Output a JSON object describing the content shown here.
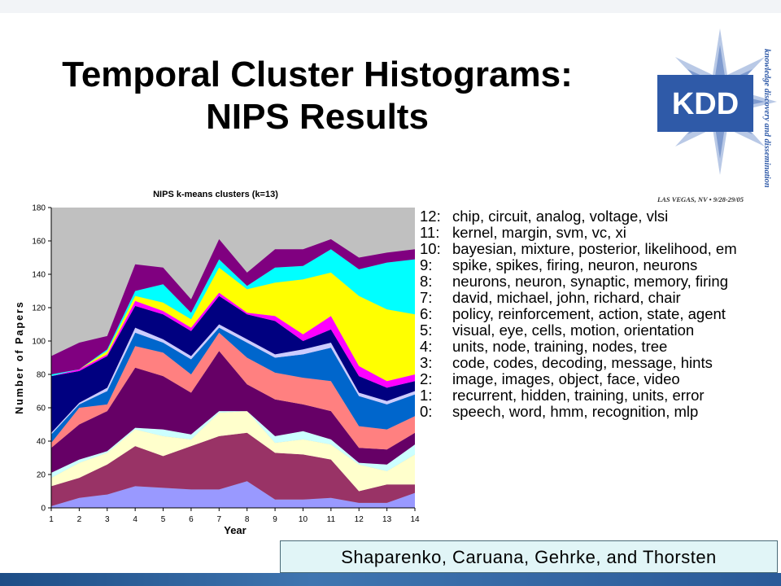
{
  "slide": {
    "title_line1": "Temporal Cluster Histograms:",
    "title_line2": "NIPS Results",
    "credit": "Shaparenko, Caruana, Gehrke, and Thorsten"
  },
  "logo": {
    "text": "KDD",
    "tagline": "knowledge discovery and dissemination",
    "location": "LAS VEGAS, NV • 9/28-29/05"
  },
  "legend": [
    {
      "key": "12:",
      "text": "chip, circuit, analog, voltage, vlsi"
    },
    {
      "key": "11:",
      "text": "kernel, margin, svm, vc, xi"
    },
    {
      "key": "10:",
      "text": "bayesian, mixture, posterior, likelihood, em"
    },
    {
      "key": "9:",
      "text": "spike, spikes, firing, neuron, neurons"
    },
    {
      "key": "8:",
      "text": "neurons, neuron, synaptic, memory, firing"
    },
    {
      "key": "7:",
      "text": "david, michael, john, richard, chair"
    },
    {
      "key": "6:",
      "text": "policy, reinforcement, action, state, agent"
    },
    {
      "key": "5:",
      "text": "visual, eye, cells, motion, orientation"
    },
    {
      "key": "4:",
      "text": "units, node, training, nodes, tree"
    },
    {
      "key": "3:",
      "text": "code, codes, decoding, message, hints"
    },
    {
      "key": "2:",
      "text": "image, images, object, face, video"
    },
    {
      "key": "1:",
      "text": "recurrent, hidden, training, units, error"
    },
    {
      "key": "0:",
      "text": "speech, word, hmm, recognition, mlp"
    }
  ],
  "chart_data": {
    "type": "area",
    "title": "NIPS k-means clusters (k=13)",
    "xlabel": "Year",
    "ylabel": "Number of Papers",
    "categories": [
      "1",
      "2",
      "3",
      "4",
      "5",
      "6",
      "7",
      "8",
      "9",
      "10",
      "11",
      "12",
      "13",
      "14"
    ],
    "ylim": [
      0,
      180
    ],
    "yticks": [
      0,
      20,
      40,
      60,
      80,
      100,
      120,
      140,
      160,
      180
    ],
    "stacked": true,
    "grid": false,
    "plot_background": "#c0c0c0",
    "series": [
      {
        "name": "0",
        "color": "#9999ff",
        "values": [
          1,
          6,
          8,
          13,
          12,
          11,
          11,
          16,
          5,
          5,
          6,
          3,
          3,
          9
        ]
      },
      {
        "name": "1",
        "color": "#993366",
        "values": [
          12,
          12,
          18,
          24,
          19,
          26,
          32,
          29,
          28,
          27,
          23,
          7,
          11,
          5
        ]
      },
      {
        "name": "2",
        "color": "#ffffcc",
        "values": [
          5,
          9,
          7,
          10,
          12,
          4,
          14,
          13,
          6,
          9,
          9,
          16,
          8,
          18
        ]
      },
      {
        "name": "3",
        "color": "#ccffff",
        "values": [
          3,
          2,
          1,
          1,
          4,
          3,
          1,
          0,
          4,
          5,
          3,
          1,
          4,
          6
        ]
      },
      {
        "name": "4",
        "color": "#660066",
        "values": [
          15,
          21,
          24,
          36,
          32,
          25,
          36,
          16,
          22,
          16,
          17,
          9,
          9,
          7
        ]
      },
      {
        "name": "5",
        "color": "#ff8080",
        "values": [
          3,
          10,
          4,
          13,
          14,
          11,
          11,
          16,
          16,
          16,
          18,
          13,
          12,
          10
        ]
      },
      {
        "name": "6",
        "color": "#0066cc",
        "values": [
          5,
          2,
          8,
          8,
          6,
          9,
          3,
          9,
          9,
          14,
          20,
          18,
          15,
          13
        ]
      },
      {
        "name": "7",
        "color": "#ccccff",
        "values": [
          1,
          1,
          2,
          3,
          2,
          2,
          2,
          2,
          2,
          3,
          3,
          2,
          2,
          2
        ]
      },
      {
        "name": "8",
        "color": "#000080",
        "values": [
          34,
          19,
          19,
          13,
          15,
          15,
          17,
          15,
          20,
          5,
          8,
          10,
          8,
          6
        ]
      },
      {
        "name": "9",
        "color": "#ff00ff",
        "values": [
          0,
          1,
          1,
          3,
          2,
          2,
          2,
          1,
          3,
          4,
          8,
          6,
          4,
          4
        ]
      },
      {
        "name": "10",
        "color": "#ffff00",
        "values": [
          0,
          0,
          2,
          3,
          5,
          5,
          15,
          14,
          20,
          33,
          26,
          42,
          43,
          36
        ]
      },
      {
        "name": "11",
        "color": "#00ffff",
        "values": [
          1,
          0,
          1,
          3,
          11,
          4,
          5,
          2,
          9,
          8,
          14,
          16,
          28,
          33
        ]
      },
      {
        "name": "12",
        "color": "#800080",
        "values": [
          11,
          16,
          8,
          16,
          10,
          8,
          12,
          8,
          11,
          10,
          6,
          7,
          6,
          6
        ]
      }
    ]
  }
}
